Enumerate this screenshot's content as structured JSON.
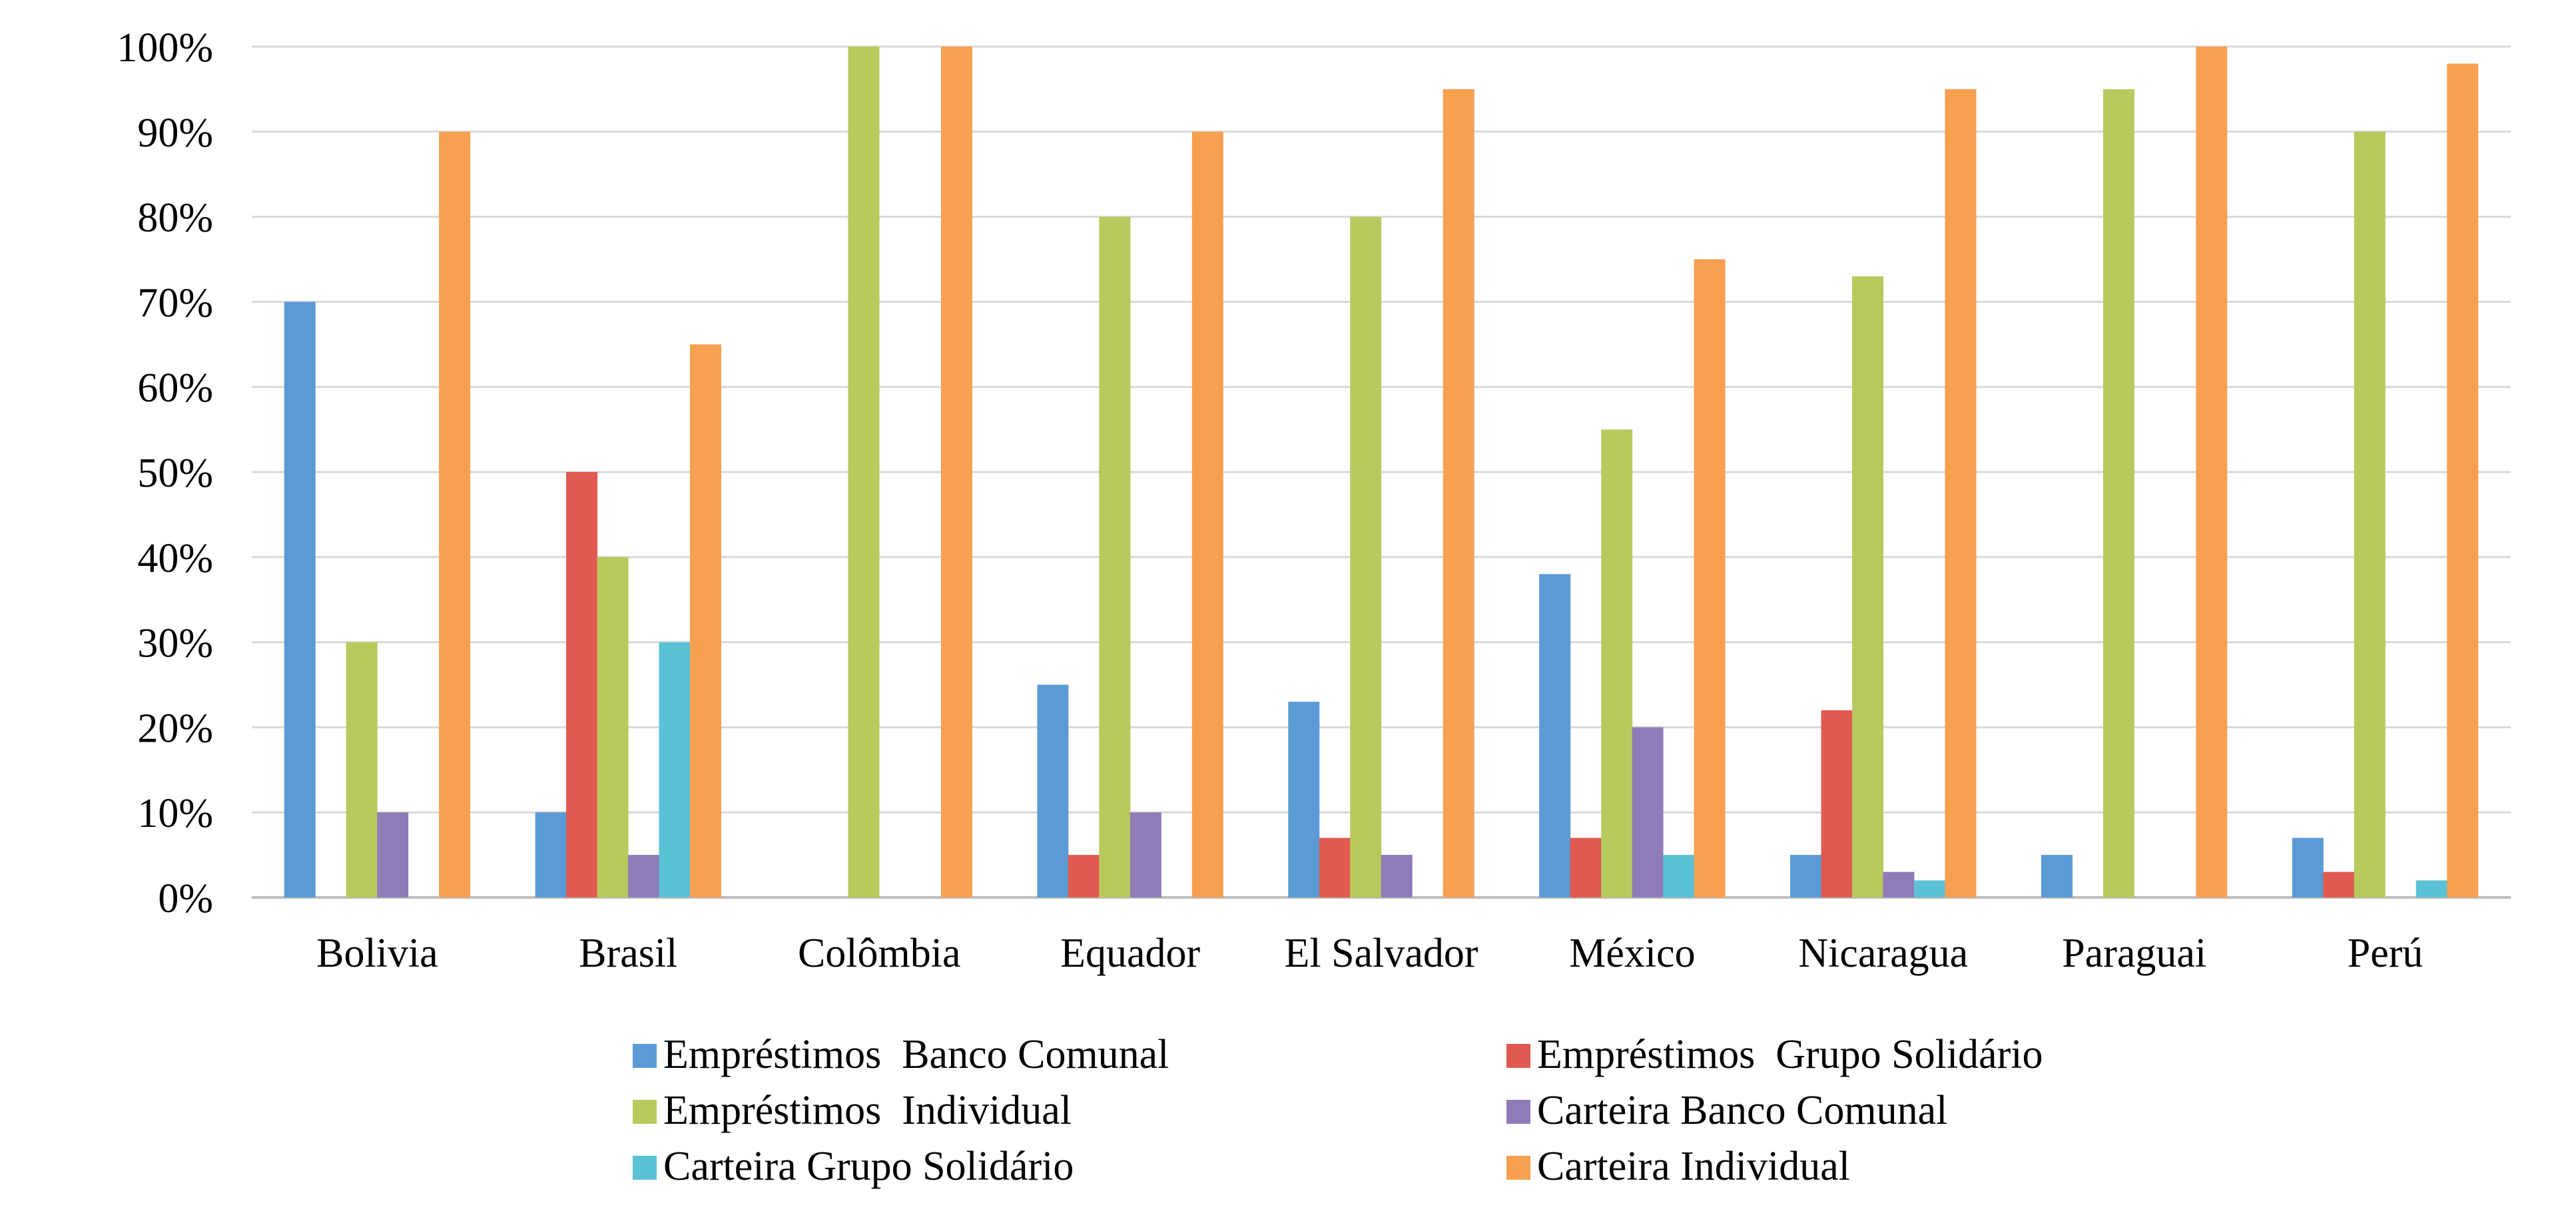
{
  "chart_data": {
    "type": "bar",
    "title": "",
    "xlabel": "",
    "ylabel": "",
    "ylim": [
      0,
      100
    ],
    "y_ticks": [
      0,
      10,
      20,
      30,
      40,
      50,
      60,
      70,
      80,
      90,
      100
    ],
    "y_tick_suffix": "%",
    "grid": "horizontal",
    "legend_position": "bottom",
    "categories": [
      "Bolivia",
      "Brasil",
      "Colômbia",
      "Equador",
      "El Salvador",
      "México",
      "Nicaragua",
      "Paraguai",
      "Perú"
    ],
    "series": [
      {
        "name": "Empréstimos  Banco Comunal",
        "color": "#5b9bd5",
        "values": [
          70,
          10,
          0,
          25,
          23,
          38,
          5,
          5,
          7
        ]
      },
      {
        "name": "Empréstimos  Grupo Solidário",
        "color": "#e05a4f",
        "values": [
          0,
          50,
          0,
          5,
          7,
          7,
          22,
          0,
          3
        ]
      },
      {
        "name": "Empréstimos  Individual",
        "color": "#b9c95e",
        "values": [
          30,
          40,
          100,
          80,
          80,
          55,
          73,
          95,
          90
        ]
      },
      {
        "name": "Carteira Banco Comunal",
        "color": "#8f7bb7",
        "values": [
          10,
          5,
          0,
          10,
          5,
          20,
          3,
          0,
          0
        ]
      },
      {
        "name": "Carteira Grupo Solidário",
        "color": "#5bc2d5",
        "values": [
          0,
          30,
          0,
          0,
          0,
          5,
          2,
          0,
          2
        ]
      },
      {
        "name": "Carteira Individual",
        "color": "#f7a050",
        "values": [
          90,
          65,
          100,
          90,
          95,
          75,
          95,
          100,
          98
        ]
      }
    ]
  }
}
